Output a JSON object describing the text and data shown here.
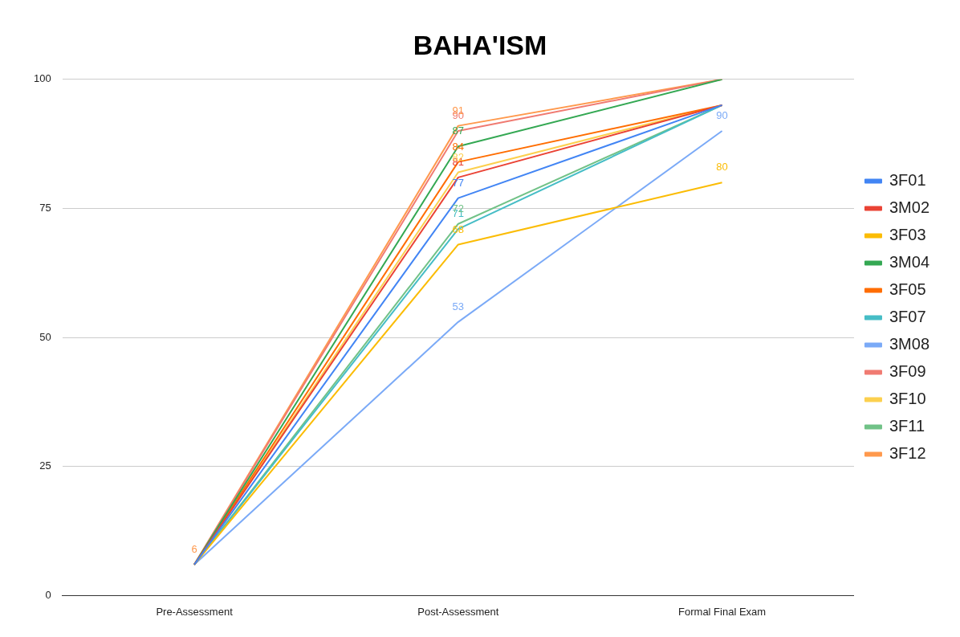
{
  "chart_data": {
    "type": "line",
    "title": "BAHA'ISM",
    "categories": [
      "Pre-Assessment",
      "Post-Assessment",
      "Formal Final Exam"
    ],
    "series": [
      {
        "name": "3F01",
        "color": "#4285f4",
        "values": [
          6,
          77,
          95
        ],
        "value_labels": [
          null,
          "77",
          null
        ]
      },
      {
        "name": "3M02",
        "color": "#ea4335",
        "values": [
          6,
          81,
          95
        ],
        "value_labels": [
          null,
          "81",
          null
        ]
      },
      {
        "name": "3F03",
        "color": "#fbbc04",
        "values": [
          6,
          68,
          80
        ],
        "value_labels": [
          null,
          "68",
          "80"
        ]
      },
      {
        "name": "3M04",
        "color": "#34a853",
        "values": [
          6,
          87,
          100
        ],
        "value_labels": [
          null,
          "87",
          null
        ]
      },
      {
        "name": "3F05",
        "color": "#ff6d01",
        "values": [
          6,
          84,
          95
        ],
        "value_labels": [
          null,
          "84",
          null
        ]
      },
      {
        "name": "3F07",
        "color": "#46bdc6",
        "values": [
          6,
          71,
          95
        ],
        "value_labels": [
          null,
          "71",
          null
        ]
      },
      {
        "name": "3M08",
        "color": "#7baaf7",
        "values": [
          6,
          53,
          90
        ],
        "value_labels": [
          null,
          "53",
          "90"
        ]
      },
      {
        "name": "3F09",
        "color": "#f07b72",
        "values": [
          6,
          90,
          100
        ],
        "value_labels": [
          null,
          "90",
          null
        ]
      },
      {
        "name": "3F10",
        "color": "#fcd04f",
        "values": [
          6,
          82,
          95
        ],
        "value_labels": [
          null,
          "82",
          null
        ]
      },
      {
        "name": "3F11",
        "color": "#71c287",
        "values": [
          6,
          72,
          95
        ],
        "value_labels": [
          null,
          "72",
          null
        ]
      },
      {
        "name": "3F12",
        "color": "#ff994d",
        "values": [
          6,
          91,
          100
        ],
        "value_labels": [
          "6",
          "91",
          null
        ]
      }
    ],
    "ylim": [
      0,
      100
    ],
    "yticks": [
      0,
      25,
      50,
      75,
      100
    ],
    "grid": "y",
    "legend": "right",
    "marker": "none",
    "line_style": "solid"
  }
}
